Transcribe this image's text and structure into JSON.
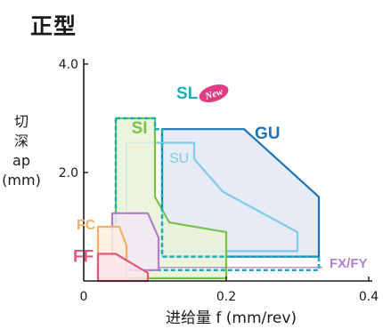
{
  "page": {
    "title": "正型",
    "ylabel_lines": [
      "切",
      "深",
      "ap",
      "(mm)"
    ],
    "xlabel": "进给量 f (mm/rev)"
  },
  "chart_data": {
    "type": "area",
    "title": "正型",
    "xlabel": "进给量 f (mm/rev)",
    "ylabel": "切深 ap (mm)",
    "xlim": [
      0,
      0.4
    ],
    "ylim": [
      0,
      4.0
    ],
    "xticks": [
      0,
      0.2,
      0.4
    ],
    "xtick_labels": [
      "0",
      "0.2",
      "0.4"
    ],
    "yticks": [
      2.0,
      4.0
    ],
    "ytick_labels": [
      "2.0",
      "4.0"
    ],
    "grid": false,
    "series": [
      {
        "name": "GU",
        "color": "#1f73b8",
        "fill": "#e2e7f4",
        "stroke": "solid",
        "points": [
          [
            0.11,
            2.8
          ],
          [
            0.225,
            2.8
          ],
          [
            0.33,
            1.55
          ],
          [
            0.33,
            0.45
          ],
          [
            0.11,
            0.45
          ]
        ]
      },
      {
        "name": "SU",
        "color": "#7fcbe6",
        "fill": "none",
        "stroke": "solid",
        "points": [
          [
            0.06,
            2.55
          ],
          [
            0.155,
            2.55
          ],
          [
            0.155,
            2.25
          ],
          [
            0.195,
            1.65
          ],
          [
            0.3,
            0.9
          ],
          [
            0.3,
            0.55
          ],
          [
            0.06,
            0.55
          ]
        ]
      },
      {
        "name": "SI",
        "color": "#78c24a",
        "fill": "#eaf2d8",
        "stroke": "solid",
        "points": [
          [
            0.045,
            3.0
          ],
          [
            0.1,
            3.0
          ],
          [
            0.1,
            1.55
          ],
          [
            0.12,
            1.08
          ],
          [
            0.2,
            0.9
          ],
          [
            0.2,
            0.05
          ],
          [
            0.045,
            0.05
          ]
        ]
      },
      {
        "name": "SL",
        "color": "#1aaeb8",
        "fill": "none",
        "stroke": "dashed",
        "badge": "New",
        "badge_color": "#e03c84",
        "points": [
          [
            0.045,
            3.0
          ],
          [
            0.1,
            3.0
          ],
          [
            0.1,
            2.8
          ],
          [
            0.11,
            2.8
          ],
          [
            0.11,
            0.45
          ],
          [
            0.33,
            0.45
          ],
          [
            0.33,
            0.2
          ],
          [
            0.045,
            0.2
          ]
        ]
      },
      {
        "name": "FX/FY",
        "color": "#b07fcc",
        "fill": "#f2e8f5",
        "stroke": "solid",
        "points": [
          [
            0.04,
            1.25
          ],
          [
            0.09,
            1.25
          ],
          [
            0.105,
            0.8
          ],
          [
            0.105,
            0.2
          ],
          [
            0.04,
            0.2
          ]
        ]
      },
      {
        "name": "FC",
        "color": "#f0b06a",
        "fill": "#fdf0df",
        "stroke": "solid",
        "points": [
          [
            0.02,
            1.0
          ],
          [
            0.05,
            1.0
          ],
          [
            0.06,
            0.65
          ],
          [
            0.06,
            0.05
          ],
          [
            0.02,
            0.05
          ]
        ]
      },
      {
        "name": "FF",
        "color": "#e25a7a",
        "fill": "#fce6ec",
        "stroke": "solid",
        "points": [
          [
            0.02,
            0.5
          ],
          [
            0.045,
            0.5
          ],
          [
            0.09,
            0.15
          ],
          [
            0.09,
            0.0
          ],
          [
            0.02,
            0.0
          ]
        ]
      }
    ],
    "labels": {
      "GU": {
        "x": 0.24,
        "y": 2.62,
        "color": "#1f73b8"
      },
      "SU": {
        "x": 0.12,
        "y": 2.18,
        "color": "#7fcbe6"
      },
      "SI": {
        "x": 0.067,
        "y": 2.72,
        "color": "#78c24a"
      },
      "SL": {
        "x": 0.13,
        "y": 3.36,
        "color": "#1aaeb8"
      },
      "FC": {
        "x": -0.01,
        "y": 0.95,
        "color": "#f0b06a"
      },
      "FF": {
        "x": -0.015,
        "y": 0.35,
        "color": "#e25a7a"
      },
      "FX/FY": {
        "x": 0.345,
        "y": 0.25,
        "color": "#b07fcc"
      }
    },
    "leader": {
      "series": "FX/FY",
      "from": [
        0.105,
        0.25
      ],
      "to": [
        0.335,
        0.25
      ]
    }
  }
}
